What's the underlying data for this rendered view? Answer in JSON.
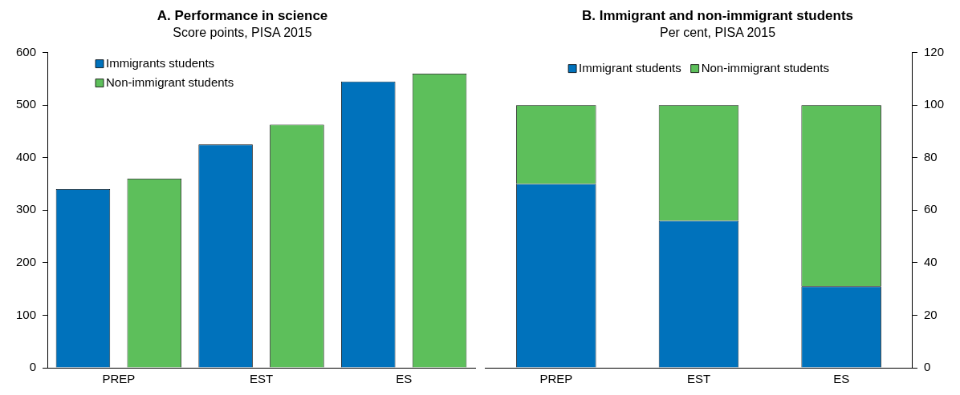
{
  "chart_data": [
    {
      "type": "bar",
      "title": "A. Performance in science",
      "subtitle": "Score points, PISA 2015",
      "categories": [
        "PREP",
        "EST",
        "ES"
      ],
      "series": [
        {
          "name": "Immigrants students",
          "color": "#0072bc",
          "values": [
            340,
            425,
            545
          ]
        },
        {
          "name": "Non-immigrant students",
          "color": "#5dbf5b",
          "values": [
            360,
            463,
            560
          ]
        }
      ],
      "ylim": [
        0,
        600
      ],
      "yticks": [
        0,
        100,
        200,
        300,
        400,
        500,
        600
      ],
      "grid": false,
      "legend": "top left"
    },
    {
      "type": "bar",
      "title": "B. Immigrant and non-immigrant students",
      "subtitle": "Per cent, PISA 2015",
      "categories": [
        "PREP",
        "EST",
        "ES"
      ],
      "stacked": true,
      "series": [
        {
          "name": "Immigrant students",
          "color": "#0072bc",
          "values": [
            70,
            56,
            31
          ],
          "axis": "y2"
        },
        {
          "name": "Non-immigrant students",
          "color": "#5dbf5b",
          "values": [
            30,
            44,
            69
          ],
          "axis": "y2"
        }
      ],
      "y2lim": [
        0,
        120
      ],
      "y2ticks": [
        0,
        20,
        40,
        60,
        80,
        100,
        120
      ],
      "grid": false,
      "legend": "top"
    }
  ]
}
